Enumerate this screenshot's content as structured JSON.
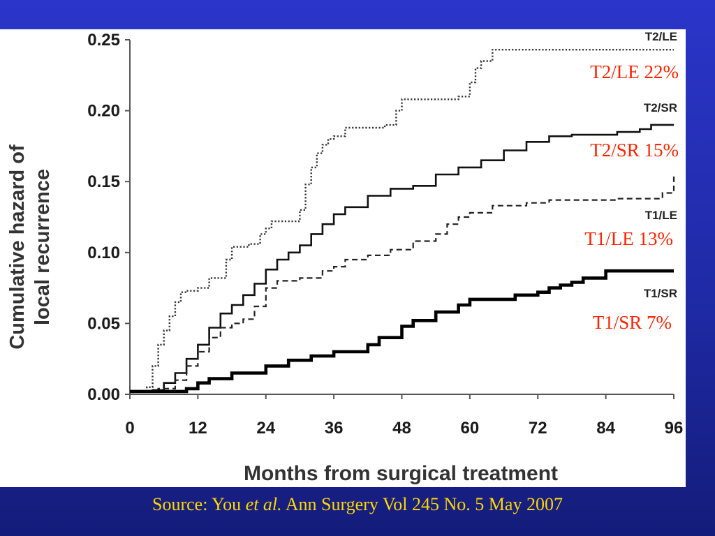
{
  "source": {
    "prefix": "Source: You ",
    "italic": "et al.",
    "suffix": " Ann Surgery Vol 245 No. 5 May 2007"
  },
  "annotations": [
    {
      "series": "T2/LE",
      "text": "T2/LE  22%",
      "color": "#ff2200"
    },
    {
      "series": "T2/SR",
      "text": "T2/SR  15%",
      "color": "#ff2200"
    },
    {
      "series": "T1/LE",
      "text": "T1/LE  13%",
      "color": "#ff2200"
    },
    {
      "series": "T1/SR",
      "text": "T1/SR  7%",
      "color": "#ff2200"
    }
  ],
  "chart_data": {
    "type": "line",
    "step": true,
    "xlabel": "Months from surgical treatment",
    "ylabel": [
      "Cumulative hazard of",
      "local recurrence"
    ],
    "xlim": [
      0,
      96
    ],
    "ylim": [
      0,
      0.25
    ],
    "xticks": [
      0,
      12,
      24,
      36,
      48,
      60,
      72,
      84,
      96
    ],
    "yticks": [
      "0.00",
      "0.05",
      "0.10",
      "0.15",
      "0.20",
      "0.25"
    ],
    "grid": false,
    "series": [
      {
        "name": "T2/LE",
        "style": "dotted",
        "x": [
          0,
          3,
          4,
          5,
          6,
          7,
          8,
          9,
          10,
          12,
          14,
          17,
          18,
          21,
          23,
          24,
          25,
          26,
          30,
          31,
          32,
          33,
          34,
          35,
          36,
          38,
          42,
          45,
          47,
          48,
          58,
          60,
          61,
          62,
          64,
          96
        ],
        "y": [
          0.002,
          0.005,
          0.02,
          0.035,
          0.045,
          0.055,
          0.065,
          0.072,
          0.073,
          0.075,
          0.082,
          0.095,
          0.104,
          0.106,
          0.113,
          0.117,
          0.122,
          0.122,
          0.13,
          0.148,
          0.16,
          0.17,
          0.176,
          0.18,
          0.182,
          0.188,
          0.188,
          0.19,
          0.2,
          0.208,
          0.21,
          0.22,
          0.23,
          0.235,
          0.243,
          0.243
        ]
      },
      {
        "name": "T2/SR",
        "style": "solid",
        "x": [
          0,
          4,
          6,
          8,
          10,
          12,
          14,
          16,
          18,
          20,
          22,
          24,
          26,
          28,
          30,
          32,
          34,
          36,
          38,
          42,
          46,
          50,
          54,
          58,
          62,
          66,
          70,
          74,
          78,
          82,
          86,
          90,
          92,
          96
        ],
        "y": [
          0.002,
          0.003,
          0.008,
          0.015,
          0.025,
          0.035,
          0.047,
          0.057,
          0.063,
          0.07,
          0.078,
          0.088,
          0.095,
          0.1,
          0.105,
          0.113,
          0.12,
          0.127,
          0.132,
          0.14,
          0.145,
          0.147,
          0.155,
          0.16,
          0.165,
          0.172,
          0.178,
          0.182,
          0.183,
          0.183,
          0.185,
          0.187,
          0.19,
          0.19
        ]
      },
      {
        "name": "T1/LE",
        "style": "dashed",
        "x": [
          0,
          5,
          8,
          10,
          12,
          14,
          16,
          18,
          20,
          22,
          24,
          26,
          30,
          34,
          36,
          38,
          42,
          46,
          50,
          54,
          56,
          58,
          60,
          64,
          70,
          74,
          80,
          86,
          94,
          96
        ],
        "y": [
          0.002,
          0.004,
          0.01,
          0.02,
          0.03,
          0.04,
          0.047,
          0.05,
          0.053,
          0.062,
          0.075,
          0.08,
          0.082,
          0.087,
          0.09,
          0.095,
          0.098,
          0.102,
          0.108,
          0.113,
          0.12,
          0.125,
          0.128,
          0.133,
          0.135,
          0.137,
          0.137,
          0.138,
          0.142,
          0.155
        ]
      },
      {
        "name": "T1/SR",
        "style": "solid-thick",
        "x": [
          0,
          10,
          12,
          14,
          18,
          24,
          28,
          32,
          36,
          42,
          44,
          48,
          50,
          54,
          58,
          60,
          68,
          72,
          74,
          76,
          78,
          80,
          84,
          96
        ],
        "y": [
          0.002,
          0.004,
          0.008,
          0.011,
          0.015,
          0.02,
          0.024,
          0.027,
          0.03,
          0.035,
          0.04,
          0.048,
          0.052,
          0.058,
          0.063,
          0.067,
          0.07,
          0.072,
          0.075,
          0.077,
          0.079,
          0.082,
          0.087,
          0.087
        ]
      }
    ]
  }
}
